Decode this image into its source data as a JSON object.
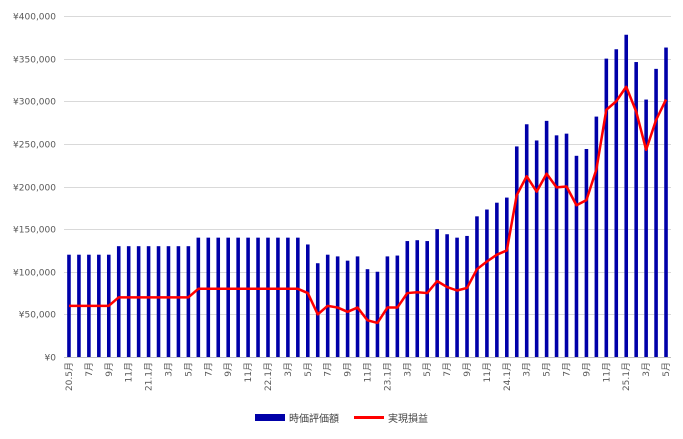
{
  "chart_data": {
    "type": "bar",
    "title": "",
    "xlabel": "",
    "ylabel": "",
    "ylim": [
      0,
      400000
    ],
    "y_ticks": [
      0,
      50000,
      100000,
      150000,
      200000,
      250000,
      300000,
      350000,
      400000
    ],
    "y_tick_labels": [
      "¥0",
      "¥50,000",
      "¥100,000",
      "¥150,000",
      "¥200,000",
      "¥250,000",
      "¥300,000",
      "¥350,000",
      "¥400,000"
    ],
    "grid": true,
    "legend_position": "bottom",
    "categories": [
      "20.5月",
      "6月",
      "7月",
      "8月",
      "9月",
      "10月",
      "11月",
      "12月",
      "21.1月",
      "2月",
      "3月",
      "4月",
      "5月",
      "6月",
      "7月",
      "8月",
      "9月",
      "10月",
      "11月",
      "12月",
      "22.1月",
      "2月",
      "3月",
      "4月",
      "5月",
      "6月",
      "7月",
      "8月",
      "9月",
      "10月",
      "11月",
      "12月",
      "23.1月",
      "2月",
      "3月",
      "4月",
      "5月",
      "6月",
      "7月",
      "8月",
      "9月",
      "10月",
      "11月",
      "12月",
      "24.1月",
      "2月",
      "3月",
      "4月",
      "5月",
      "6月",
      "7月",
      "8月",
      "9月",
      "10月",
      "11月",
      "12月",
      "25.1月",
      "2月",
      "3月",
      "4月",
      "5月"
    ],
    "x_tick_labels": [
      "20.5月",
      "",
      "7月",
      "",
      "9月",
      "",
      "11月",
      "",
      "21.1月",
      "",
      "3月",
      "",
      "5月",
      "",
      "7月",
      "",
      "9月",
      "",
      "11月",
      "",
      "22.1月",
      "",
      "3月",
      "",
      "5月",
      "",
      "7月",
      "",
      "9月",
      "",
      "11月",
      "",
      "23.1月",
      "",
      "3月",
      "",
      "5月",
      "",
      "7月",
      "",
      "9月",
      "",
      "11月",
      "",
      "24.1月",
      "",
      "3月",
      "",
      "5月",
      "",
      "7月",
      "",
      "9月",
      "",
      "11月",
      "",
      "25.1月",
      "",
      "3月",
      "",
      "5月"
    ],
    "series": [
      {
        "name": "時価評価額",
        "kind": "bar",
        "color": "#0000A8",
        "values": [
          120000,
          120000,
          120000,
          120000,
          120000,
          130000,
          130000,
          130000,
          130000,
          130000,
          130000,
          130000,
          130000,
          140000,
          140000,
          140000,
          140000,
          140000,
          140000,
          140000,
          140000,
          140000,
          140000,
          140000,
          132000,
          110000,
          120000,
          118000,
          113000,
          118000,
          103000,
          100000,
          118000,
          119000,
          136000,
          137000,
          136000,
          150000,
          144000,
          140000,
          142000,
          165000,
          173000,
          181000,
          187000,
          247000,
          273000,
          254000,
          277000,
          260000,
          262000,
          236000,
          244000,
          282000,
          350000,
          361000,
          378000,
          346000,
          302000,
          338000,
          363000
        ]
      },
      {
        "name": "実現損益",
        "kind": "line",
        "color": "#FF0000",
        "values": [
          60000,
          60000,
          60000,
          60000,
          60000,
          70000,
          70000,
          70000,
          70000,
          70000,
          70000,
          70000,
          70000,
          80000,
          80000,
          80000,
          80000,
          80000,
          80000,
          80000,
          80000,
          80000,
          80000,
          80000,
          75000,
          50000,
          60000,
          58000,
          53000,
          58000,
          43000,
          40000,
          58000,
          58000,
          75000,
          76000,
          75000,
          89000,
          82000,
          78000,
          81000,
          103000,
          112000,
          120000,
          125000,
          190000,
          212000,
          194000,
          215000,
          199000,
          200000,
          178000,
          184000,
          220000,
          290000,
          300000,
          317000,
          288000,
          243000,
          278000,
          302000
        ]
      }
    ]
  }
}
